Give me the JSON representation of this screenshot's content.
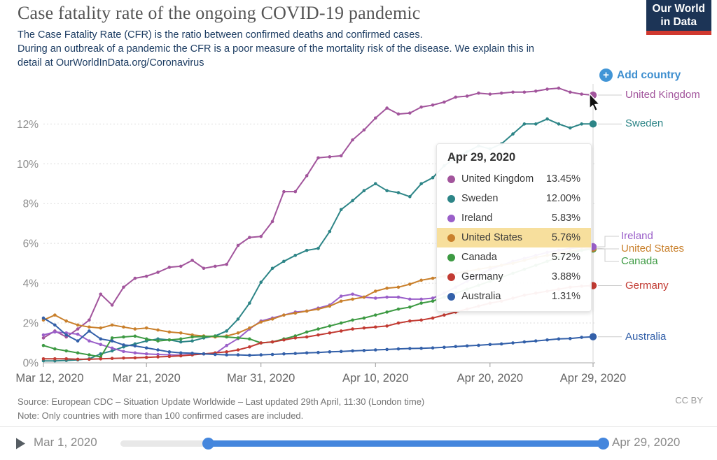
{
  "header": {
    "title": "Case fatality rate of the ongoing COVID-19 pandemic",
    "subtitle_line1": "The Case Fatality Rate (CFR) is the ratio between confirmed deaths and confirmed cases.",
    "subtitle_line2": "During an outbreak of a pandemic the CFR is a poor measure of the mortality risk of the disease. We explain this in",
    "subtitle_line3": "detail at OurWorldInData.org/Coronavirus",
    "logo_line1": "Our World",
    "logo_line2": "in Data"
  },
  "controls": {
    "add_country_label": "Add country"
  },
  "chart_data": {
    "type": "line",
    "title": "Case fatality rate of the ongoing COVID-19 pandemic",
    "ylabel": "Case fatality rate",
    "ylim": [
      0,
      14
    ],
    "y_ticks": [
      0,
      2,
      4,
      6,
      8,
      10,
      12
    ],
    "y_tick_suffix": "%",
    "grid": "dashed-horizontal",
    "legend_position": "right",
    "hover_day_index": 48,
    "x_tick_days": [
      0,
      9,
      19,
      29,
      39,
      48
    ],
    "x_tick_labels": [
      "Mar 12, 2020",
      "Mar 21, 2020",
      "Mar 31, 2020",
      "Apr 10, 2020",
      "Apr 20, 2020",
      "Apr 29, 2020"
    ],
    "x_dates": [
      "Mar 12",
      "Mar 13",
      "Mar 14",
      "Mar 15",
      "Mar 16",
      "Mar 17",
      "Mar 18",
      "Mar 19",
      "Mar 20",
      "Mar 21",
      "Mar 22",
      "Mar 23",
      "Mar 24",
      "Mar 25",
      "Mar 26",
      "Mar 27",
      "Mar 28",
      "Mar 29",
      "Mar 30",
      "Mar 31",
      "Apr 1",
      "Apr 2",
      "Apr 3",
      "Apr 4",
      "Apr 5",
      "Apr 6",
      "Apr 7",
      "Apr 8",
      "Apr 9",
      "Apr 10",
      "Apr 11",
      "Apr 12",
      "Apr 13",
      "Apr 14",
      "Apr 15",
      "Apr 16",
      "Apr 17",
      "Apr 18",
      "Apr 19",
      "Apr 20",
      "Apr 21",
      "Apr 22",
      "Apr 23",
      "Apr 24",
      "Apr 25",
      "Apr 26",
      "Apr 27",
      "Apr 28",
      "Apr 29"
    ],
    "series": [
      {
        "name": "United Kingdom",
        "color": "#a2559c",
        "values": [
          1.25,
          1.6,
          1.3,
          1.7,
          2.15,
          3.45,
          2.9,
          3.8,
          4.25,
          4.35,
          4.55,
          4.8,
          4.85,
          5.15,
          4.75,
          4.85,
          4.95,
          5.9,
          6.3,
          6.35,
          7.1,
          8.6,
          8.6,
          9.4,
          10.3,
          10.35,
          10.4,
          11.2,
          11.7,
          12.3,
          12.8,
          12.5,
          12.55,
          12.85,
          12.95,
          13.1,
          13.35,
          13.4,
          13.55,
          13.5,
          13.55,
          13.6,
          13.6,
          13.65,
          13.75,
          13.8,
          13.6,
          13.5,
          13.45
        ]
      },
      {
        "name": "Sweden",
        "color": "#2d8587",
        "values": [
          0.1,
          0.1,
          0.12,
          0.15,
          0.2,
          0.45,
          0.6,
          0.8,
          0.95,
          1.1,
          1.2,
          1.15,
          1.05,
          1.1,
          1.25,
          1.35,
          1.6,
          2.2,
          3.0,
          4.05,
          4.75,
          5.1,
          5.4,
          5.65,
          5.75,
          6.6,
          7.7,
          8.15,
          8.65,
          9.0,
          8.65,
          8.55,
          8.35,
          9.0,
          9.3,
          9.9,
          10.3,
          10.6,
          10.9,
          10.75,
          11.0,
          11.5,
          12.0,
          12.0,
          12.25,
          12.0,
          11.8,
          12.0,
          12.0
        ]
      },
      {
        "name": "Ireland",
        "color": "#9a5fc9",
        "values": [
          1.4,
          1.55,
          1.5,
          1.44,
          1.1,
          0.92,
          0.74,
          0.57,
          0.5,
          0.45,
          0.42,
          0.4,
          0.39,
          0.42,
          0.45,
          0.46,
          0.87,
          1.22,
          1.7,
          2.1,
          2.25,
          2.4,
          2.55,
          2.6,
          2.75,
          2.9,
          3.35,
          3.45,
          3.3,
          3.25,
          3.3,
          3.3,
          3.2,
          3.2,
          3.25,
          3.5,
          3.8,
          4.1,
          4.4,
          4.7,
          4.9,
          5.1,
          5.25,
          5.4,
          5.55,
          5.65,
          5.75,
          5.8,
          5.83
        ]
      },
      {
        "name": "United States",
        "color": "#c9802c",
        "values": [
          2.15,
          2.4,
          2.1,
          1.9,
          1.8,
          1.75,
          1.9,
          1.8,
          1.7,
          1.75,
          1.65,
          1.55,
          1.5,
          1.4,
          1.35,
          1.3,
          1.35,
          1.5,
          1.75,
          2.05,
          2.2,
          2.4,
          2.5,
          2.6,
          2.7,
          2.85,
          3.1,
          3.2,
          3.3,
          3.6,
          3.75,
          3.8,
          3.95,
          4.15,
          4.25,
          4.35,
          4.5,
          4.6,
          4.7,
          4.8,
          4.9,
          5.0,
          5.15,
          5.3,
          5.4,
          5.5,
          5.6,
          5.7,
          5.76
        ]
      },
      {
        "name": "Canada",
        "color": "#3d9a43",
        "values": [
          0.87,
          0.7,
          0.6,
          0.5,
          0.4,
          0.3,
          1.25,
          1.3,
          1.34,
          1.2,
          1.1,
          1.15,
          1.2,
          1.3,
          1.32,
          1.34,
          1.3,
          1.25,
          1.2,
          1.0,
          1.05,
          1.2,
          1.35,
          1.55,
          1.7,
          1.85,
          2.0,
          2.15,
          2.25,
          2.4,
          2.55,
          2.7,
          2.8,
          3.0,
          3.1,
          3.3,
          3.5,
          3.7,
          3.9,
          4.1,
          4.3,
          4.5,
          4.7,
          4.9,
          5.1,
          5.3,
          5.5,
          5.65,
          5.72
        ]
      },
      {
        "name": "Germany",
        "color": "#c23b33",
        "values": [
          0.2,
          0.2,
          0.2,
          0.18,
          0.18,
          0.2,
          0.22,
          0.24,
          0.25,
          0.27,
          0.3,
          0.32,
          0.35,
          0.4,
          0.45,
          0.5,
          0.55,
          0.65,
          0.8,
          1.0,
          1.05,
          1.15,
          1.25,
          1.3,
          1.4,
          1.5,
          1.6,
          1.7,
          1.75,
          1.8,
          1.85,
          2.0,
          2.1,
          2.15,
          2.25,
          2.4,
          2.55,
          2.7,
          2.85,
          3.0,
          3.1,
          3.25,
          3.4,
          3.5,
          3.6,
          3.7,
          3.8,
          3.85,
          3.88
        ]
      },
      {
        "name": "Australia",
        "color": "#3360a9",
        "values": [
          2.25,
          1.9,
          1.4,
          1.1,
          1.6,
          1.2,
          1.1,
          0.9,
          0.85,
          0.75,
          0.65,
          0.55,
          0.5,
          0.48,
          0.45,
          0.42,
          0.4,
          0.4,
          0.38,
          0.4,
          0.42,
          0.45,
          0.47,
          0.5,
          0.52,
          0.55,
          0.57,
          0.6,
          0.62,
          0.65,
          0.67,
          0.7,
          0.72,
          0.73,
          0.75,
          0.78,
          0.82,
          0.85,
          0.88,
          0.92,
          0.95,
          1.0,
          1.05,
          1.1,
          1.15,
          1.2,
          1.22,
          1.28,
          1.31
        ]
      }
    ]
  },
  "tooltip": {
    "date": "Apr 29, 2020",
    "highlighted_country": "United States",
    "rows": [
      {
        "country": "United Kingdom",
        "value": "13.45%"
      },
      {
        "country": "Sweden",
        "value": "12.00%"
      },
      {
        "country": "Ireland",
        "value": "5.83%"
      },
      {
        "country": "United States",
        "value": "5.76%"
      },
      {
        "country": "Canada",
        "value": "5.72%"
      },
      {
        "country": "Germany",
        "value": "3.88%"
      },
      {
        "country": "Australia",
        "value": "1.31%"
      }
    ]
  },
  "footer": {
    "source": "Source: European CDC – Situation Update Worldwide – Last updated 29th April, 11:30 (London time)",
    "note": "Note: Only countries with more than 100 confirmed cases are included.",
    "license": "CC BY"
  },
  "timeline": {
    "start_label": "Mar 1, 2020",
    "end_label": "Apr 29, 2020",
    "range_start_fraction": 0.18,
    "range_end_fraction": 1.0
  },
  "colors": {
    "accent_blue": "#3d8ecf",
    "highlight_yellow": "#f7df9d",
    "slider_blue": "#4486dd",
    "logo_navy": "#1c3456",
    "logo_red": "#d0382f"
  }
}
